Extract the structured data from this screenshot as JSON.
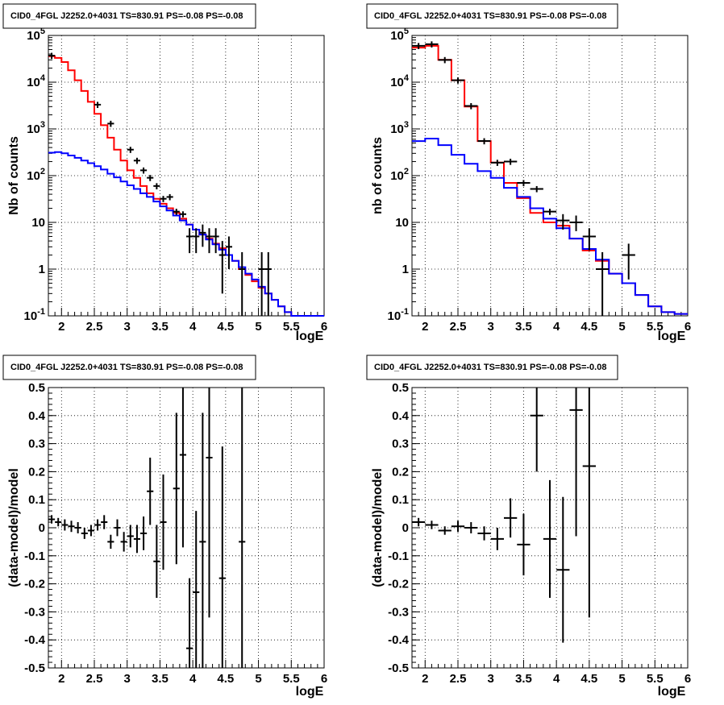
{
  "chart_data": [
    {
      "type": "line",
      "title": "CID0_4FGL J2252.0+4031 TS=830.91 PS=-0.08 PS=-0.08",
      "xlabel": "logE",
      "ylabel": "Nb of counts",
      "xlim": [
        1.8,
        6
      ],
      "ylim": [
        0.1,
        100000
      ],
      "yscale": "log",
      "grid": true,
      "x_ticks": [
        "2",
        "2.5",
        "3",
        "3.5",
        "4",
        "4.5",
        "5",
        "5.5",
        "6"
      ],
      "y_ticks": [
        "10^-1",
        "1",
        "10",
        "10^2",
        "10^3",
        "10^4",
        "10^5"
      ],
      "bin_edges": [
        1.8,
        1.9,
        2.0,
        2.1,
        2.2,
        2.3,
        2.4,
        2.5,
        2.6,
        2.7,
        2.8,
        2.9,
        3.0,
        3.1,
        3.2,
        3.3,
        3.4,
        3.5,
        3.6,
        3.7,
        3.8,
        3.9,
        4.0,
        4.1,
        4.2,
        4.3,
        4.4,
        4.5,
        4.6,
        4.7,
        4.8,
        4.9,
        5.0,
        5.1,
        5.2,
        5.3,
        5.4,
        5.5,
        5.6,
        5.7,
        5.8,
        5.9,
        6.0
      ],
      "series": [
        {
          "color": "#ff0000",
          "values": [
            36000,
            33000,
            27000,
            18000,
            11000,
            6500,
            3800,
            2100,
            1200,
            650,
            360,
            210,
            130,
            90,
            60,
            42,
            32,
            25,
            20,
            16,
            12,
            9,
            7,
            5.5,
            4.5,
            3.5,
            2.8,
            2.0,
            1.5,
            1.0,
            0.75,
            0.55,
            0.4,
            0.3,
            0.22,
            0.16,
            0.12,
            0.1,
            0.1,
            0.1,
            0.1,
            0.1
          ]
        },
        {
          "color": "#0000ff",
          "values": [
            310,
            320,
            300,
            270,
            240,
            210,
            185,
            160,
            135,
            110,
            92,
            75,
            62,
            52,
            42,
            35,
            28,
            22,
            18,
            14,
            11,
            9,
            7,
            5.5,
            4.3,
            3.4,
            2.6,
            2.0,
            1.5,
            1.1,
            0.8,
            0.6,
            0.42,
            0.3,
            0.22,
            0.16,
            0.12,
            0.1,
            0.1,
            0.1,
            0.1,
            0.1
          ]
        }
      ],
      "points": [
        {
          "x": 1.85,
          "y": 37000
        },
        {
          "x": 2.55,
          "y": 3300
        },
        {
          "x": 2.75,
          "y": 1300
        },
        {
          "x": 3.05,
          "y": 360
        },
        {
          "x": 3.15,
          "y": 210
        },
        {
          "x": 3.25,
          "y": 130
        },
        {
          "x": 3.35,
          "y": 90
        },
        {
          "x": 3.45,
          "y": 60
        },
        {
          "x": 3.55,
          "y": 32
        },
        {
          "x": 3.65,
          "y": 35
        },
        {
          "x": 3.75,
          "y": 17
        },
        {
          "x": 3.85,
          "y": 15
        },
        {
          "x": 3.95,
          "y": 5,
          "ylo": 2.2,
          "yhi": 7.5
        },
        {
          "x": 4.05,
          "y": 5,
          "ylo": 2.2,
          "yhi": 7.5
        },
        {
          "x": 4.15,
          "y": 6,
          "ylo": 3,
          "yhi": 9
        },
        {
          "x": 4.25,
          "y": 5,
          "ylo": 2.2,
          "yhi": 7.5
        },
        {
          "x": 4.35,
          "y": 5,
          "ylo": 2.2,
          "yhi": 7.5
        },
        {
          "x": 4.45,
          "y": 2,
          "ylo": 0.3,
          "yhi": 4
        },
        {
          "x": 4.55,
          "y": 3,
          "ylo": 1.0,
          "yhi": 5
        },
        {
          "x": 4.75,
          "y": 1,
          "ylo": 0.1,
          "yhi": 2.3
        },
        {
          "x": 5.05,
          "y": 1,
          "ylo": 0.1,
          "yhi": 2.3
        },
        {
          "x": 5.15,
          "y": 1,
          "ylo": 0.1,
          "yhi": 2.3
        }
      ]
    },
    {
      "type": "line",
      "title": "CID0_4FGL J2252.0+4031 TS=830.91 PS=-0.08 PS=-0.08",
      "xlabel": "logE",
      "ylabel": "nb of counts",
      "xlim": [
        1.8,
        6
      ],
      "ylim": [
        0.1,
        100000
      ],
      "yscale": "log",
      "grid": true,
      "x_ticks": [
        "2",
        "2.5",
        "3",
        "3.5",
        "4",
        "4.5",
        "5",
        "5.5",
        "6"
      ],
      "y_ticks": [
        "10^-1",
        "1",
        "10",
        "10^2",
        "10^3",
        "10^4",
        "10^5"
      ],
      "bin_edges": [
        1.8,
        2.0,
        2.2,
        2.4,
        2.6,
        2.8,
        3.0,
        3.2,
        3.4,
        3.6,
        3.8,
        4.0,
        4.2,
        4.4,
        4.6,
        4.8,
        5.0,
        5.2,
        5.4,
        5.6,
        5.8,
        6.0
      ],
      "series": [
        {
          "color": "#ff0000",
          "values": [
            55000,
            60000,
            30000,
            11000,
            3000,
            550,
            190,
            70,
            33,
            16,
            10,
            8.5,
            4.5,
            2.5,
            1.5,
            0.8,
            0.5,
            0.28,
            0.16,
            0.12,
            0.11
          ]
        },
        {
          "color": "#0000ff",
          "values": [
            550,
            620,
            450,
            280,
            180,
            125,
            90,
            55,
            35,
            20,
            12,
            7.5,
            4.5,
            2.7,
            1.6,
            0.8,
            0.5,
            0.28,
            0.16,
            0.12,
            0.11
          ]
        }
      ],
      "points": [
        {
          "x": 1.9,
          "y": 60000
        },
        {
          "x": 2.1,
          "y": 65000
        },
        {
          "x": 2.3,
          "y": 30000
        },
        {
          "x": 2.5,
          "y": 11000
        },
        {
          "x": 2.7,
          "y": 3100
        },
        {
          "x": 2.9,
          "y": 550
        },
        {
          "x": 3.1,
          "y": 190
        },
        {
          "x": 3.3,
          "y": 200
        },
        {
          "x": 3.5,
          "y": 70
        },
        {
          "x": 3.7,
          "y": 52
        },
        {
          "x": 3.9,
          "y": 17
        },
        {
          "x": 4.1,
          "y": 11,
          "ylo": 7,
          "yhi": 15
        },
        {
          "x": 4.3,
          "y": 10,
          "ylo": 6.5,
          "yhi": 14
        },
        {
          "x": 4.5,
          "y": 5,
          "ylo": 2.5,
          "yhi": 7.5
        },
        {
          "x": 4.7,
          "y": 1,
          "ylo": 0.1,
          "yhi": 2.3
        },
        {
          "x": 5.1,
          "y": 2,
          "ylo": 0.6,
          "yhi": 3.5
        }
      ]
    },
    {
      "type": "scatter",
      "title": "CID0_4FGL J2252.0+4031 TS=830.91 PS=-0.08 PS=-0.08",
      "xlabel": "logE",
      "ylabel": "(data-model)/model",
      "xlim": [
        1.8,
        6
      ],
      "ylim": [
        -0.5,
        0.5
      ],
      "grid": true,
      "x_ticks": [
        "2",
        "2.5",
        "3",
        "3.5",
        "4",
        "4.5",
        "5",
        "5.5",
        "6"
      ],
      "y_ticks": [
        "-0.5",
        "-0.4",
        "-0.3",
        "-0.2",
        "-0.1",
        "0",
        "0.1",
        "0.2",
        "0.3",
        "0.4",
        "0.5"
      ],
      "xerr": 0.05,
      "points": [
        {
          "x": 1.85,
          "y": 0.03,
          "err": 0.015
        },
        {
          "x": 1.95,
          "y": 0.02,
          "err": 0.015
        },
        {
          "x": 2.05,
          "y": 0.01,
          "err": 0.02
        },
        {
          "x": 2.15,
          "y": 0.005,
          "err": 0.02
        },
        {
          "x": 2.25,
          "y": 0.0,
          "err": 0.02
        },
        {
          "x": 2.35,
          "y": -0.02,
          "err": 0.02
        },
        {
          "x": 2.45,
          "y": -0.01,
          "err": 0.02
        },
        {
          "x": 2.55,
          "y": 0.01,
          "err": 0.02
        },
        {
          "x": 2.65,
          "y": 0.02,
          "err": 0.025
        },
        {
          "x": 2.75,
          "y": -0.05,
          "err": 0.025
        },
        {
          "x": 2.85,
          "y": 0.0,
          "err": 0.03
        },
        {
          "x": 2.95,
          "y": -0.05,
          "err": 0.035
        },
        {
          "x": 3.05,
          "y": -0.03,
          "err": 0.04
        },
        {
          "x": 3.15,
          "y": -0.04,
          "err": 0.05
        },
        {
          "x": 3.25,
          "y": -0.02,
          "err": 0.06
        },
        {
          "x": 3.35,
          "y": 0.13,
          "err": 0.12
        },
        {
          "x": 3.45,
          "y": -0.12,
          "err": 0.13
        },
        {
          "x": 3.55,
          "y": 0.02,
          "err": 0.17
        },
        {
          "x": 3.75,
          "y": 0.14,
          "err": 0.27
        },
        {
          "x": 3.85,
          "y": 0.26,
          "err": 0.33
        },
        {
          "x": 3.95,
          "y": -0.43,
          "err": 0.25
        },
        {
          "x": 4.05,
          "y": -0.23,
          "err": 0.29
        },
        {
          "x": 4.15,
          "y": -0.05,
          "err": 0.46
        },
        {
          "x": 4.25,
          "y": 0.25,
          "err": 0.57
        },
        {
          "x": 4.45,
          "y": -0.18,
          "err": 0.47
        },
        {
          "x": 4.75,
          "y": -0.05,
          "err": 0.9
        }
      ]
    },
    {
      "type": "scatter",
      "title": "CID0_4FGL J2252.0+4031 TS=830.91 PS=-0.08 PS=-0.08",
      "xlabel": "logE",
      "ylabel": "(data-model)/model",
      "xlim": [
        1.8,
        6
      ],
      "ylim": [
        -0.5,
        0.5
      ],
      "grid": true,
      "x_ticks": [
        "2",
        "2.5",
        "3",
        "3.5",
        "4",
        "4.5",
        "5",
        "5.5",
        "6"
      ],
      "y_ticks": [
        "-0.5",
        "-0.4",
        "-0.3",
        "-0.2",
        "-0.1",
        "0",
        "0.1",
        "0.2",
        "0.3",
        "0.4",
        "0.5"
      ],
      "xerr": 0.1,
      "points": [
        {
          "x": 1.9,
          "y": 0.02,
          "err": 0.015
        },
        {
          "x": 2.1,
          "y": 0.01,
          "err": 0.015
        },
        {
          "x": 2.3,
          "y": -0.01,
          "err": 0.015
        },
        {
          "x": 2.5,
          "y": 0.005,
          "err": 0.02
        },
        {
          "x": 2.7,
          "y": 0.0,
          "err": 0.02
        },
        {
          "x": 2.9,
          "y": -0.02,
          "err": 0.025
        },
        {
          "x": 3.1,
          "y": -0.04,
          "err": 0.04
        },
        {
          "x": 3.3,
          "y": 0.035,
          "err": 0.07
        },
        {
          "x": 3.5,
          "y": -0.06,
          "err": 0.11
        },
        {
          "x": 3.7,
          "y": 0.4,
          "err": 0.2
        },
        {
          "x": 3.9,
          "y": -0.04,
          "err": 0.21
        },
        {
          "x": 4.1,
          "y": -0.15,
          "err": 0.26
        },
        {
          "x": 4.3,
          "y": 0.42,
          "err": 0.45
        },
        {
          "x": 4.5,
          "y": 0.22,
          "err": 0.54
        }
      ]
    }
  ]
}
